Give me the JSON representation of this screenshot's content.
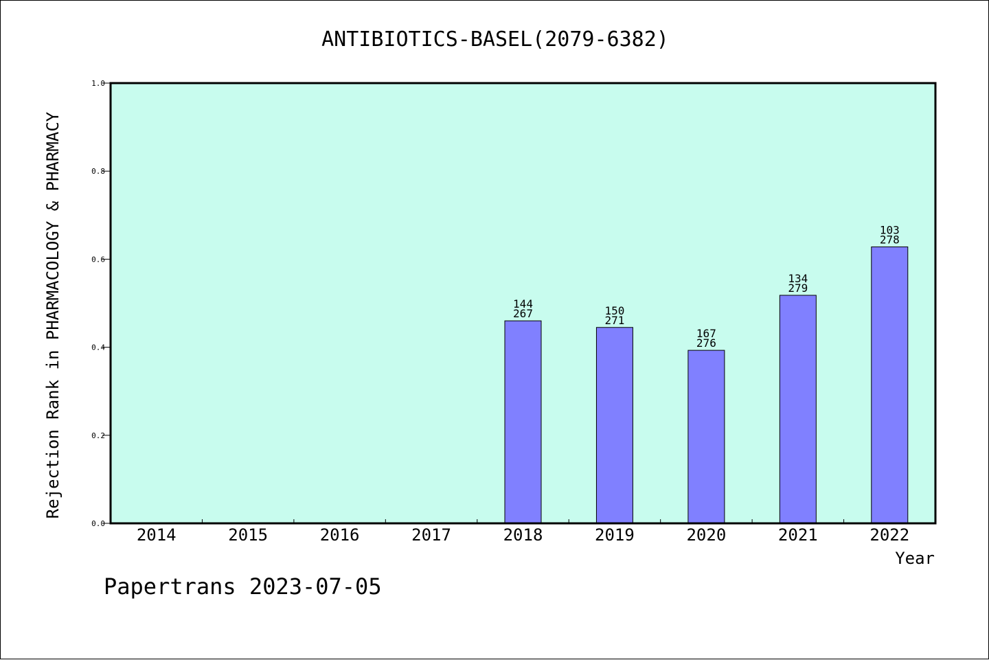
{
  "chart_data": {
    "type": "bar",
    "title": "ANTIBIOTICS-BASEL(2079-6382)",
    "xlabel": "Year",
    "ylabel": "Rejection Rank in PHARMACOLOGY & PHARMACY",
    "categories": [
      "2014",
      "2015",
      "2016",
      "2017",
      "2018",
      "2019",
      "2020",
      "2021",
      "2022"
    ],
    "values": [
      null,
      null,
      null,
      null,
      0.46,
      0.445,
      0.393,
      0.518,
      0.628
    ],
    "bar_labels": [
      null,
      null,
      null,
      null,
      [
        "144",
        "267"
      ],
      [
        "150",
        "271"
      ],
      [
        "167",
        "276"
      ],
      [
        "134",
        "279"
      ],
      [
        "103",
        "278"
      ]
    ],
    "ylim": [
      0,
      1.0
    ],
    "yticks": [
      "0.0",
      "0.2",
      "0.4",
      "0.6",
      "0.8",
      "1.0"
    ],
    "grid": false,
    "colors": {
      "plot_background": "#c8fcee",
      "bar_fill": "#8080ff",
      "bar_stroke": "#000000"
    }
  },
  "footer": "Papertrans 2023-07-05"
}
